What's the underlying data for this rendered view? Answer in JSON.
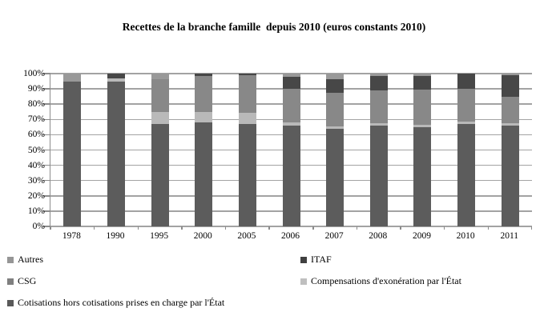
{
  "title": "Recettes de la branche famille  depuis 2010 (euros constants 2010)",
  "chart_data": {
    "type": "bar",
    "variant": "100%-stacked-column",
    "title": "Recettes de la branche famille depuis 2010 (euros constants 2010)",
    "xlabel": "",
    "ylabel": "",
    "ylim": [
      0,
      100
    ],
    "grid": true,
    "legend_position": "bottom",
    "y_ticks": [
      "100%",
      "90%",
      "80%",
      "70%",
      "60%",
      "50%",
      "40%",
      "30%",
      "20%",
      "10%",
      "0%"
    ],
    "categories": [
      "1978",
      "1990",
      "1995",
      "2000",
      "2005",
      "2006",
      "2007",
      "2008",
      "2009",
      "2010",
      "2011"
    ],
    "series_note": "values are percent of total revenue; series listed bottom-to-top of the stack",
    "series": [
      {
        "name": "Cotisations hors cotisations prises en charge par l'État",
        "color": "#5c5c5c",
        "values": [
          95,
          95,
          67,
          68,
          67,
          66,
          64,
          66,
          65,
          67,
          66
        ]
      },
      {
        "name": "Compensations d'exonération par l'État",
        "color": "#b9b9b9",
        "values": [
          0,
          2,
          8,
          7,
          7.5,
          2,
          1.5,
          1.5,
          1.5,
          1.5,
          1.5
        ]
      },
      {
        "name": "CSG",
        "color": "#888888",
        "values": [
          0,
          0,
          21.5,
          23.5,
          24.5,
          22,
          22,
          21.5,
          23,
          21.5,
          17.5
        ]
      },
      {
        "name": "ITAF",
        "color": "#474747",
        "values": [
          0,
          3,
          0,
          1.5,
          1,
          8,
          9,
          9.5,
          9,
          10,
          14
        ]
      },
      {
        "name": "Autres",
        "color": "#999999",
        "values": [
          5,
          0,
          3.5,
          0,
          0,
          2,
          3.5,
          1.5,
          1.5,
          0,
          1
        ]
      }
    ]
  },
  "legend": {
    "items": [
      {
        "label": "Autres",
        "color": "#969696"
      },
      {
        "label": "ITAF",
        "color": "#404040"
      },
      {
        "label": "CSG",
        "color": "#7f7f7f"
      },
      {
        "label": "Compensations d'exonération par l'État",
        "color": "#bfbfbf"
      },
      {
        "label": "Cotisations hors cotisations prises en charge par l'État",
        "color": "#595959"
      }
    ]
  }
}
